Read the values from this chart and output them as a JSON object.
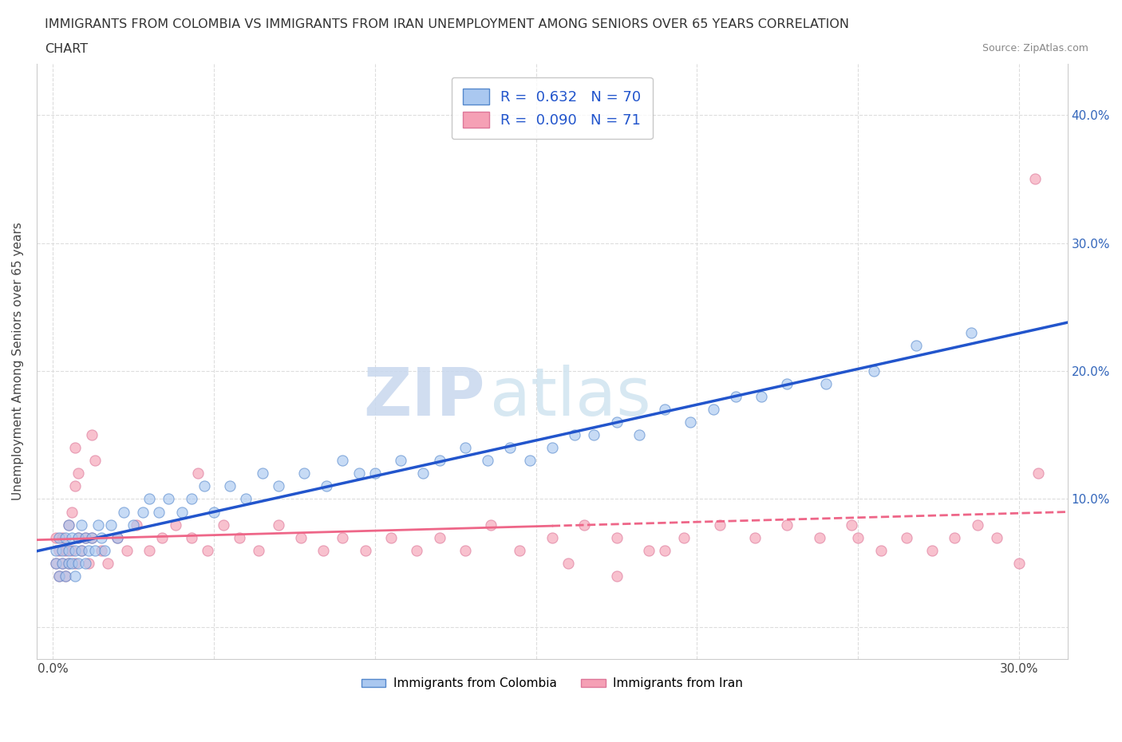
{
  "title_line1": "IMMIGRANTS FROM COLOMBIA VS IMMIGRANTS FROM IRAN UNEMPLOYMENT AMONG SENIORS OVER 65 YEARS CORRELATION",
  "title_line2": "CHART",
  "source": "Source: ZipAtlas.com",
  "ylabel": "Unemployment Among Seniors over 65 years",
  "x_ticks": [
    0.0,
    0.05,
    0.1,
    0.15,
    0.2,
    0.25,
    0.3
  ],
  "x_tick_labels": [
    "0.0%",
    "",
    "",
    "",
    "",
    "",
    "30.0%"
  ],
  "y_ticks_right": [
    0.0,
    0.1,
    0.2,
    0.3,
    0.4
  ],
  "y_tick_labels_right": [
    "",
    "10.0%",
    "20.0%",
    "30.0%",
    "40.0%"
  ],
  "xlim": [
    -0.005,
    0.315
  ],
  "ylim": [
    -0.025,
    0.44
  ],
  "colombia_color": "#aac8f0",
  "colombia_edge": "#5588cc",
  "iran_color": "#f5a0b5",
  "iran_edge": "#dd7799",
  "colombia_line_color": "#2255cc",
  "iran_line_color": "#ee6688",
  "iran_line_solid_end": 0.155,
  "R_colombia": 0.632,
  "N_colombia": 70,
  "R_iran": 0.09,
  "N_iran": 71,
  "legend_label_colombia": "Immigrants from Colombia",
  "legend_label_iran": "Immigrants from Iran",
  "watermark_zip": "ZIP",
  "watermark_atlas": "atlas",
  "background_color": "#ffffff",
  "grid_color": "#dddddd",
  "grid_style": "--",
  "colombia_scatter_x": [
    0.001,
    0.001,
    0.002,
    0.002,
    0.003,
    0.003,
    0.004,
    0.004,
    0.005,
    0.005,
    0.005,
    0.006,
    0.006,
    0.007,
    0.007,
    0.008,
    0.008,
    0.009,
    0.009,
    0.01,
    0.01,
    0.011,
    0.012,
    0.013,
    0.014,
    0.015,
    0.016,
    0.018,
    0.02,
    0.022,
    0.025,
    0.028,
    0.03,
    0.033,
    0.036,
    0.04,
    0.043,
    0.047,
    0.05,
    0.055,
    0.06,
    0.065,
    0.07,
    0.078,
    0.085,
    0.09,
    0.095,
    0.1,
    0.108,
    0.115,
    0.12,
    0.128,
    0.135,
    0.142,
    0.148,
    0.155,
    0.162,
    0.168,
    0.175,
    0.182,
    0.19,
    0.198,
    0.205,
    0.212,
    0.22,
    0.228,
    0.24,
    0.255,
    0.268,
    0.285
  ],
  "colombia_scatter_y": [
    0.05,
    0.06,
    0.04,
    0.07,
    0.05,
    0.06,
    0.04,
    0.07,
    0.05,
    0.06,
    0.08,
    0.05,
    0.07,
    0.04,
    0.06,
    0.05,
    0.07,
    0.06,
    0.08,
    0.05,
    0.07,
    0.06,
    0.07,
    0.06,
    0.08,
    0.07,
    0.06,
    0.08,
    0.07,
    0.09,
    0.08,
    0.09,
    0.1,
    0.09,
    0.1,
    0.09,
    0.1,
    0.11,
    0.09,
    0.11,
    0.1,
    0.12,
    0.11,
    0.12,
    0.11,
    0.13,
    0.12,
    0.12,
    0.13,
    0.12,
    0.13,
    0.14,
    0.13,
    0.14,
    0.13,
    0.14,
    0.15,
    0.15,
    0.16,
    0.15,
    0.17,
    0.16,
    0.17,
    0.18,
    0.18,
    0.19,
    0.19,
    0.2,
    0.22,
    0.23
  ],
  "iran_scatter_x": [
    0.001,
    0.001,
    0.002,
    0.002,
    0.003,
    0.003,
    0.004,
    0.004,
    0.005,
    0.005,
    0.006,
    0.006,
    0.007,
    0.007,
    0.008,
    0.008,
    0.009,
    0.01,
    0.011,
    0.012,
    0.013,
    0.015,
    0.017,
    0.02,
    0.023,
    0.026,
    0.03,
    0.034,
    0.038,
    0.043,
    0.048,
    0.053,
    0.058,
    0.064,
    0.07,
    0.077,
    0.084,
    0.09,
    0.097,
    0.105,
    0.113,
    0.12,
    0.128,
    0.136,
    0.145,
    0.155,
    0.165,
    0.175,
    0.185,
    0.196,
    0.207,
    0.218,
    0.228,
    0.238,
    0.248,
    0.257,
    0.265,
    0.273,
    0.28,
    0.287,
    0.293,
    0.3,
    0.306,
    0.25,
    0.19,
    0.045,
    0.012,
    0.007,
    0.16,
    0.175,
    0.305
  ],
  "iran_scatter_y": [
    0.05,
    0.07,
    0.04,
    0.06,
    0.05,
    0.07,
    0.04,
    0.06,
    0.05,
    0.08,
    0.06,
    0.09,
    0.14,
    0.05,
    0.07,
    0.12,
    0.06,
    0.07,
    0.05,
    0.07,
    0.13,
    0.06,
    0.05,
    0.07,
    0.06,
    0.08,
    0.06,
    0.07,
    0.08,
    0.07,
    0.06,
    0.08,
    0.07,
    0.06,
    0.08,
    0.07,
    0.06,
    0.07,
    0.06,
    0.07,
    0.06,
    0.07,
    0.06,
    0.08,
    0.06,
    0.07,
    0.08,
    0.07,
    0.06,
    0.07,
    0.08,
    0.07,
    0.08,
    0.07,
    0.08,
    0.06,
    0.07,
    0.06,
    0.07,
    0.08,
    0.07,
    0.05,
    0.12,
    0.07,
    0.06,
    0.12,
    0.15,
    0.11,
    0.05,
    0.04,
    0.35
  ]
}
